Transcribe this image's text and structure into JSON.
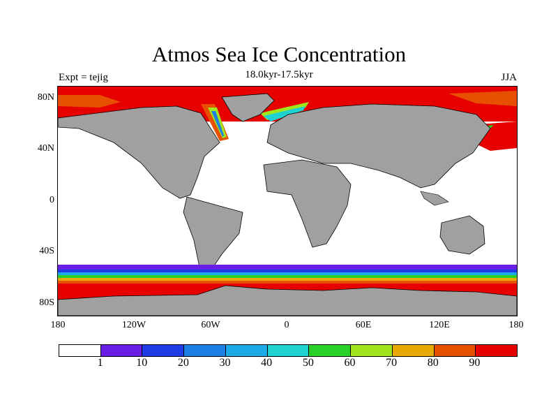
{
  "title": "Atmos Sea Ice Concentration",
  "subtitle": "18.0kyr-17.5kyr",
  "left_label": "Expt = tejig",
  "right_label": "JJA",
  "lat_labels": [
    "80N",
    "40N",
    "0",
    "40S",
    "80S"
  ],
  "lon_labels": [
    "180",
    "120W",
    "60W",
    "0",
    "60E",
    "120E",
    "180"
  ],
  "colorbar": {
    "colors": [
      "#ffffff",
      "#6a1ee6",
      "#1e3ce6",
      "#1e7fe6",
      "#1eaae6",
      "#1ed2d2",
      "#28d228",
      "#a0e61e",
      "#e6aa00",
      "#e65000",
      "#e60000"
    ],
    "labels": [
      "1",
      "10",
      "20",
      "30",
      "40",
      "50",
      "60",
      "70",
      "80",
      "90"
    ]
  },
  "colors": {
    "land": "#a0a0a0",
    "ocean": "#ffffff",
    "ice_high": "#e60000",
    "ice_mid": "#e65000"
  }
}
